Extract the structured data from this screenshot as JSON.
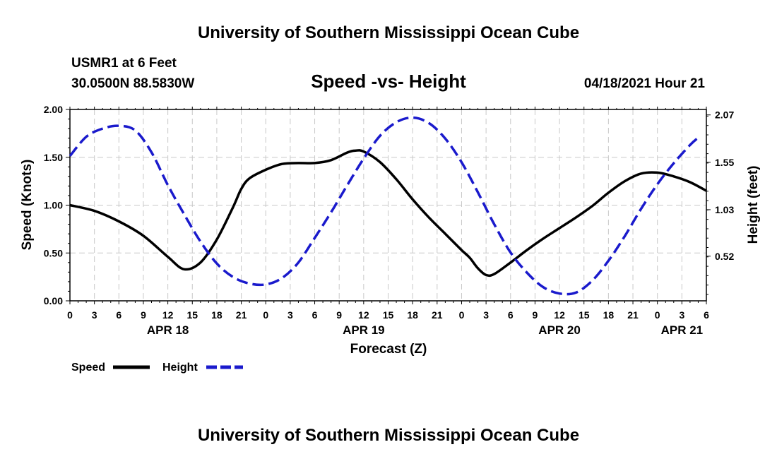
{
  "header": {
    "title": "University of Southern Mississippi Ocean Cube",
    "station": "USMR1 at 6 Feet",
    "location": "30.0500N  88.5830W",
    "plot_title": "Speed -vs- Height",
    "datetime": "04/18/2021 Hour 21"
  },
  "footer": {
    "title": "University of Southern Mississippi Ocean Cube"
  },
  "colors": {
    "speed": "#000000",
    "height": "#1a1acc",
    "grid": "#c8c8c8"
  },
  "legend": {
    "speed_label": "Speed",
    "height_label": "Height"
  },
  "chart_data": {
    "type": "line",
    "title": "Speed -vs- Height",
    "xlabel": "Forecast (Z)",
    "ylabel": "Speed (Knots)",
    "y2label": "Height (feet)",
    "x_unit": "hours since 04/18 00Z",
    "xlim": [
      0,
      78
    ],
    "ylim": [
      0,
      2.0
    ],
    "y2lim": [
      0.03,
      2.13
    ],
    "x_tick_values": [
      0,
      3,
      6,
      9,
      12,
      15,
      18,
      21,
      24,
      27,
      30,
      33,
      36,
      39,
      42,
      45,
      48,
      51,
      54,
      57,
      60,
      63,
      66,
      69,
      72,
      75,
      78
    ],
    "x_tick_labels": [
      "0",
      "3",
      "6",
      "9",
      "12",
      "15",
      "18",
      "21",
      "0",
      "3",
      "6",
      "9",
      "12",
      "15",
      "18",
      "21",
      "0",
      "3",
      "6",
      "9",
      "12",
      "15",
      "18",
      "21",
      "0",
      "3",
      "6"
    ],
    "date_labels": [
      {
        "x": 12,
        "label": "APR 18"
      },
      {
        "x": 36,
        "label": "APR 19"
      },
      {
        "x": 60,
        "label": "APR 20"
      },
      {
        "x": 75,
        "label": "APR 21"
      }
    ],
    "y_ticks": [
      0.0,
      0.5,
      1.0,
      1.5,
      2.0
    ],
    "y_tick_labels": [
      "0.00",
      "0.50",
      "1.00",
      "1.50",
      "2.00"
    ],
    "y2_ticks": [
      0.52,
      1.03,
      1.55,
      2.07
    ],
    "y2_tick_labels": [
      "0.52",
      "1.03",
      "1.55",
      "2.07"
    ],
    "grid": true,
    "series": [
      {
        "name": "Speed",
        "axis": "left",
        "style": "solid",
        "x": [
          0,
          3,
          6,
          9,
          12,
          14,
          16,
          18,
          20,
          21,
          22,
          24,
          26,
          28,
          30,
          32,
          34,
          35,
          36,
          38,
          40,
          42,
          44,
          46,
          48,
          49,
          50,
          51,
          52,
          54,
          56,
          58,
          60,
          62,
          64,
          66,
          68,
          70,
          72,
          74,
          76,
          78
        ],
        "y": [
          1.0,
          0.94,
          0.83,
          0.68,
          0.46,
          0.33,
          0.4,
          0.64,
          0.98,
          1.17,
          1.28,
          1.37,
          1.43,
          1.44,
          1.44,
          1.47,
          1.55,
          1.57,
          1.56,
          1.45,
          1.27,
          1.06,
          0.87,
          0.7,
          0.53,
          0.45,
          0.34,
          0.27,
          0.28,
          0.4,
          0.53,
          0.65,
          0.76,
          0.87,
          0.99,
          1.13,
          1.25,
          1.33,
          1.34,
          1.3,
          1.24,
          1.15
        ]
      },
      {
        "name": "Height",
        "axis": "right",
        "style": "dashed",
        "x": [
          0,
          2,
          4,
          6,
          8,
          10,
          12,
          14,
          16,
          18,
          20,
          22,
          24,
          26,
          28,
          30,
          32,
          34,
          36,
          38,
          40,
          42,
          44,
          46,
          48,
          50,
          52,
          54,
          56,
          58,
          60,
          62,
          64,
          66,
          68,
          70,
          72,
          74,
          76,
          77
        ],
        "y": [
          1.62,
          1.83,
          1.92,
          1.95,
          1.9,
          1.66,
          1.3,
          0.98,
          0.68,
          0.44,
          0.29,
          0.22,
          0.21,
          0.28,
          0.45,
          0.72,
          1.0,
          1.3,
          1.59,
          1.84,
          1.99,
          2.04,
          1.98,
          1.81,
          1.55,
          1.22,
          0.87,
          0.56,
          0.34,
          0.18,
          0.11,
          0.12,
          0.25,
          0.47,
          0.74,
          1.04,
          1.31,
          1.54,
          1.74,
          1.82
        ]
      }
    ]
  }
}
